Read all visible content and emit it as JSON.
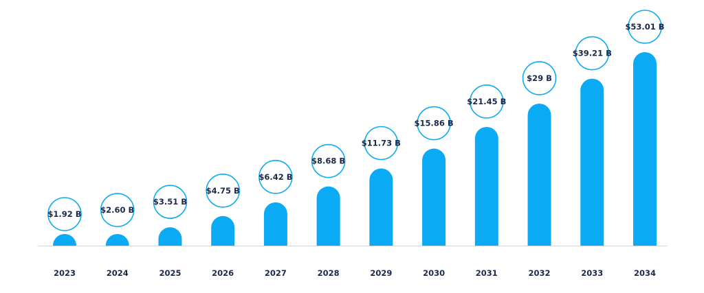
{
  "chart_data": {
    "type": "bar",
    "categories": [
      "2023",
      "2024",
      "2025",
      "2026",
      "2027",
      "2028",
      "2029",
      "2030",
      "2031",
      "2032",
      "2033",
      "2034"
    ],
    "values": [
      1.92,
      2.6,
      3.51,
      4.75,
      6.42,
      8.68,
      11.73,
      15.86,
      21.45,
      29,
      39.21,
      53.01
    ],
    "value_labels": [
      "$1.92 B",
      "$2.60 B",
      "$3.51 B",
      "$4.75 B",
      "$6.42 B",
      "$8.68 B",
      "$11.73 B",
      "$15.86 B",
      "$21.45 B",
      "$29 B",
      "$39.21 B",
      "$53.01 B"
    ],
    "title": "",
    "xlabel": "",
    "ylabel": "",
    "grid": false,
    "legend": "none",
    "colors": {
      "bar": "#0aabf4",
      "circle_stroke": "#0aabf4",
      "text": "#1b2a4a",
      "baseline": "#d0d4dc"
    }
  }
}
